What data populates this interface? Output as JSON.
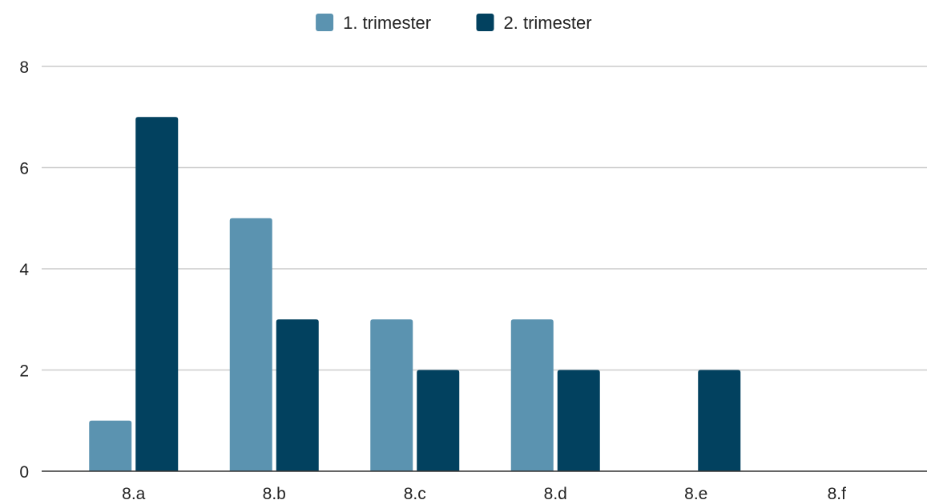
{
  "chart_data": {
    "type": "bar",
    "categories": [
      "8.a",
      "8.b",
      "8.c",
      "8.d",
      "8.e",
      "8.f"
    ],
    "series": [
      {
        "name": "1. trimester",
        "color": "#5b93b0",
        "values": [
          1,
          5,
          3,
          3,
          0,
          0
        ]
      },
      {
        "name": "2. trimester",
        "color": "#02415f",
        "values": [
          7,
          3,
          2,
          2,
          2,
          0
        ]
      }
    ],
    "ylim": [
      0,
      8
    ],
    "yticks": [
      0,
      2,
      4,
      6,
      8
    ],
    "grid": true,
    "legend_position": "top-center",
    "gridline_color": "#cccccc",
    "axis_color": "#333333"
  }
}
